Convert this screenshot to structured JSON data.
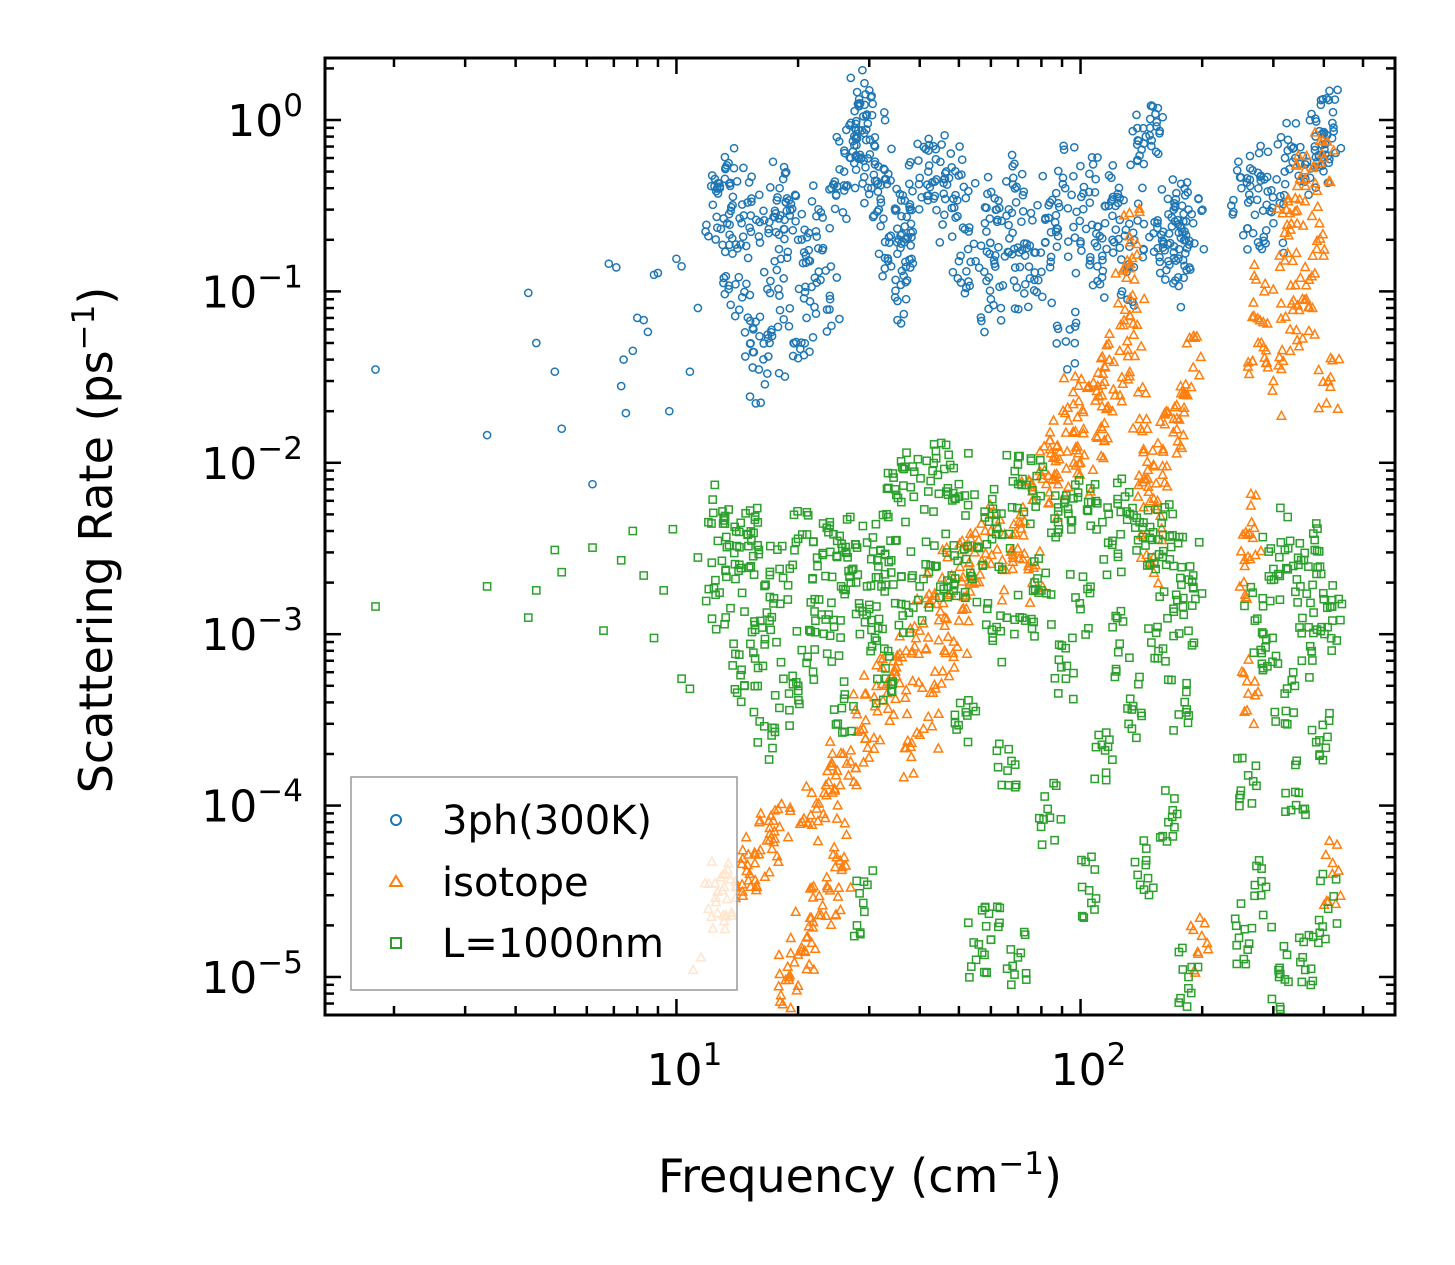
{
  "chart_data": {
    "type": "scatter",
    "xscale": "log",
    "yscale": "log",
    "xlim": [
      1.35,
      600
    ],
    "ylim": [
      6e-06,
      2.3
    ],
    "xlabel": {
      "text": "Frequency (cm",
      "sup": "−1",
      "tail": ")"
    },
    "ylabel": {
      "text": "Scattering Rate (ps",
      "sup": "−1",
      "tail": ")"
    },
    "xticks": [
      {
        "value": 10,
        "base": "10",
        "exp": "1"
      },
      {
        "value": 100,
        "base": "10",
        "exp": "2"
      }
    ],
    "yticks": [
      {
        "value": 1,
        "base": "10",
        "exp": "0"
      },
      {
        "value": 0.1,
        "base": "10",
        "exp": "−1"
      },
      {
        "value": 0.01,
        "base": "10",
        "exp": "−2"
      },
      {
        "value": 0.001,
        "base": "10",
        "exp": "−3"
      },
      {
        "value": 0.0001,
        "base": "10",
        "exp": "−4"
      },
      {
        "value": 1e-05,
        "base": "10",
        "exp": "−5"
      }
    ],
    "legend_position": "lower-left",
    "series": [
      {
        "name": "3ph(300K)",
        "marker": "circle",
        "color": "#1f77b4",
        "points": [
          [
            1.8,
            0.035
          ],
          [
            3.4,
            0.0145
          ],
          [
            4.3,
            0.098
          ],
          [
            4.5,
            0.05
          ],
          [
            5.0,
            0.034
          ],
          [
            5.2,
            0.0158
          ],
          [
            6.2,
            0.0075
          ],
          [
            6.8,
            0.145
          ],
          [
            7.1,
            0.138
          ],
          [
            7.3,
            0.028
          ],
          [
            7.4,
            0.04
          ],
          [
            7.5,
            0.0195
          ],
          [
            7.8,
            0.045
          ],
          [
            8.0,
            0.07
          ],
          [
            8.3,
            0.068
          ],
          [
            8.5,
            0.058
          ],
          [
            8.8,
            0.125
          ],
          [
            9.0,
            0.128
          ],
          [
            9.6,
            0.02
          ],
          [
            10.0,
            0.155
          ],
          [
            10.3,
            0.14
          ],
          [
            10.8,
            0.034
          ],
          [
            11.3,
            0.08
          ],
          [
            12.0,
            0.21
          ],
          [
            12.3,
            0.32
          ],
          [
            12.8,
            0.4
          ],
          [
            13.2,
            0.17
          ],
          [
            13.6,
            0.43
          ],
          [
            14.0,
            0.11
          ],
          [
            14.5,
            0.25
          ],
          [
            15.0,
            0.33
          ],
          [
            15.5,
            0.06
          ],
          [
            16.0,
            0.035
          ],
          [
            16.5,
            0.26
          ],
          [
            17.0,
            0.05
          ],
          [
            17.5,
            0.15
          ],
          [
            18.0,
            0.4
          ],
          [
            18.5,
            0.23
          ],
          [
            19.0,
            0.34
          ],
          [
            19.5,
            0.05
          ],
          [
            20.0,
            0.2
          ],
          [
            21.0,
            0.07
          ],
          [
            22.0,
            0.12
          ],
          [
            23.0,
            0.27
          ],
          [
            24.0,
            0.09
          ],
          [
            25.0,
            0.41
          ],
          [
            26.0,
            0.5
          ],
          [
            27.0,
            0.6
          ],
          [
            28.0,
            0.78
          ],
          [
            28.5,
            1.25
          ],
          [
            29.0,
            1.05
          ],
          [
            29.5,
            0.88
          ],
          [
            30.0,
            0.37
          ],
          [
            31.0,
            0.7
          ],
          [
            32.0,
            0.24
          ],
          [
            33.0,
            0.45
          ],
          [
            34.0,
            0.14
          ],
          [
            35.0,
            0.3
          ],
          [
            36.0,
            0.19
          ],
          [
            37.0,
            0.09
          ],
          [
            38.0,
            0.22
          ],
          [
            40.0,
            0.46
          ],
          [
            42.0,
            0.5
          ],
          [
            44.0,
            0.45
          ],
          [
            46.0,
            0.28
          ],
          [
            48.0,
            0.53
          ],
          [
            50.0,
            0.15
          ],
          [
            52.0,
            0.35
          ],
          [
            55.0,
            0.15
          ],
          [
            58.0,
            0.25
          ],
          [
            60.0,
            0.09
          ],
          [
            62.0,
            0.3
          ],
          [
            65.0,
            0.16
          ],
          [
            68.0,
            0.42
          ],
          [
            70.0,
            0.18
          ],
          [
            73.0,
            0.11
          ],
          [
            76.0,
            0.26
          ],
          [
            80.0,
            0.13
          ],
          [
            84.0,
            0.33
          ],
          [
            88.0,
            0.21
          ],
          [
            92.0,
            0.051
          ],
          [
            96.0,
            0.47
          ],
          [
            100.0,
            0.19
          ],
          [
            105.0,
            0.38
          ],
          [
            110.0,
            0.14
          ],
          [
            115.0,
            0.25
          ],
          [
            120.0,
            0.2
          ],
          [
            125.0,
            0.35
          ],
          [
            130.0,
            0.13
          ],
          [
            135.0,
            0.22
          ],
          [
            140.0,
            0.62
          ],
          [
            145.0,
            0.8
          ],
          [
            150.0,
            0.76
          ],
          [
            155.0,
            0.25
          ],
          [
            160.0,
            0.18
          ],
          [
            165.0,
            0.15
          ],
          [
            170.0,
            0.3
          ],
          [
            175.0,
            0.22
          ],
          [
            180.0,
            0.12
          ],
          [
            185.0,
            0.3
          ],
          [
            190.0,
            0.25
          ],
          [
            250.0,
            0.4
          ],
          [
            260.0,
            0.33
          ],
          [
            270.0,
            0.28
          ],
          [
            285.0,
            0.45
          ],
          [
            300.0,
            0.25
          ],
          [
            320.0,
            0.5
          ],
          [
            340.0,
            0.6
          ],
          [
            360.0,
            0.55
          ],
          [
            380.0,
            0.7
          ],
          [
            400.0,
            0.85
          ],
          [
            420.0,
            0.96
          ],
          [
            410.0,
            0.62
          ]
        ]
      },
      {
        "name": "isotope",
        "marker": "triangle",
        "color": "#ff7f0e",
        "points": [
          [
            11.0,
            1.1e-05
          ],
          [
            11.5,
            1.3e-05
          ],
          [
            12.0,
            2.5e-05
          ],
          [
            12.5,
            2.9e-05
          ],
          [
            13.0,
            3.2e-05
          ],
          [
            14.0,
            3.6e-05
          ],
          [
            15.0,
            4.5e-05
          ],
          [
            16.0,
            5.2e-05
          ],
          [
            17.0,
            6.3e-05
          ],
          [
            18.0,
            7.5e-05
          ],
          [
            19.0,
            1e-05
          ],
          [
            20.0,
            1.35e-05
          ],
          [
            21.0,
            1.7e-05
          ],
          [
            21.5,
            8.8e-05
          ],
          [
            22.5,
            2.3e-05
          ],
          [
            23.5,
            0.000115
          ],
          [
            24.0,
            3.2e-05
          ],
          [
            25.0,
            0.00016
          ],
          [
            26.0,
            5e-05
          ],
          [
            27.0,
            0.00021
          ],
          [
            29.0,
            0.00028
          ],
          [
            31.0,
            0.00038
          ],
          [
            33.0,
            0.0005
          ],
          [
            35.0,
            0.00064
          ],
          [
            37.0,
            0.0008
          ],
          [
            38.0,
            0.00022
          ],
          [
            40.0,
            0.00105
          ],
          [
            42.0,
            0.00033
          ],
          [
            44.0,
            0.0015
          ],
          [
            46.0,
            0.0008
          ],
          [
            48.0,
            0.0022
          ],
          [
            50.0,
            0.0012
          ],
          [
            53.0,
            0.0026
          ],
          [
            56.0,
            0.0032
          ],
          [
            60.0,
            0.004
          ],
          [
            64.0,
            0.0024
          ],
          [
            68.0,
            0.0038
          ],
          [
            72.0,
            0.0055
          ],
          [
            76.0,
            0.002
          ],
          [
            80.0,
            0.0085
          ],
          [
            84.0,
            0.012
          ],
          [
            88.0,
            0.0075
          ],
          [
            92.0,
            0.015
          ],
          [
            96.0,
            0.022
          ],
          [
            100.0,
            0.01
          ],
          [
            105.0,
            0.028
          ],
          [
            110.0,
            0.014
          ],
          [
            115.0,
            0.036
          ],
          [
            120.0,
            0.02
          ],
          [
            125.0,
            0.045
          ],
          [
            130.0,
            0.12
          ],
          [
            132.0,
            0.21
          ],
          [
            135.0,
            0.065
          ],
          [
            140.0,
            0.018
          ],
          [
            145.0,
            0.008
          ],
          [
            150.0,
            0.0026
          ],
          [
            155.0,
            0.006
          ],
          [
            160.0,
            0.012
          ],
          [
            170.0,
            0.018
          ],
          [
            180.0,
            0.025
          ],
          [
            190.0,
            0.036
          ],
          [
            195.0,
            1.4e-05
          ],
          [
            255.0,
            0.0025
          ],
          [
            260.0,
            0.00045
          ],
          [
            265.0,
            0.0045
          ],
          [
            275.0,
            0.05
          ],
          [
            285.0,
            0.1
          ],
          [
            300.0,
            0.03
          ],
          [
            320.0,
            0.22
          ],
          [
            330.0,
            0.06
          ],
          [
            340.0,
            0.35
          ],
          [
            350.0,
            0.12
          ],
          [
            360.0,
            0.45
          ],
          [
            375.0,
            0.08
          ],
          [
            390.0,
            0.25
          ],
          [
            400.0,
            0.6
          ],
          [
            410.0,
            0.03
          ],
          [
            420.0,
            4e-05
          ]
        ]
      },
      {
        "name": "L=1000nm",
        "marker": "square",
        "color": "#2ca02c",
        "points": [
          [
            1.8,
            0.00145
          ],
          [
            3.4,
            0.0019
          ],
          [
            4.3,
            0.00125
          ],
          [
            4.5,
            0.0018
          ],
          [
            5.0,
            0.0031
          ],
          [
            5.2,
            0.0023
          ],
          [
            6.2,
            0.0032
          ],
          [
            6.6,
            0.00105
          ],
          [
            7.3,
            0.0027
          ],
          [
            7.8,
            0.004
          ],
          [
            8.3,
            0.0022
          ],
          [
            8.8,
            0.00095
          ],
          [
            9.3,
            0.0018
          ],
          [
            9.8,
            0.0041
          ],
          [
            10.3,
            0.00055
          ],
          [
            10.8,
            0.00048
          ],
          [
            11.3,
            0.0028
          ],
          [
            12.0,
            0.0045
          ],
          [
            12.5,
            0.0017
          ],
          [
            13.0,
            0.0052
          ],
          [
            13.5,
            0.0033
          ],
          [
            14.0,
            0.0021
          ],
          [
            14.5,
            0.00062
          ],
          [
            15.0,
            0.0038
          ],
          [
            15.5,
            0.00078
          ],
          [
            16.0,
            0.0031
          ],
          [
            16.5,
            0.00029
          ],
          [
            17.0,
            0.0012
          ],
          [
            18.0,
            0.0024
          ],
          [
            19.0,
            0.00045
          ],
          [
            20.0,
            0.0036
          ],
          [
            21.0,
            0.00068
          ],
          [
            22.0,
            0.0016
          ],
          [
            23.0,
            0.0029
          ],
          [
            24.0,
            0.00098
          ],
          [
            25.0,
            0.0035
          ],
          [
            26.0,
            0.00042
          ],
          [
            27.0,
            0.002
          ],
          [
            28.0,
            0.0032
          ],
          [
            29.0,
            2.7e-05
          ],
          [
            30.0,
            0.0014
          ],
          [
            31.0,
            0.00095
          ],
          [
            32.0,
            0.0031
          ],
          [
            33.0,
            0.00055
          ],
          [
            34.0,
            0.0027
          ],
          [
            35.0,
            0.0065
          ],
          [
            36.0,
            0.0015
          ],
          [
            38.0,
            0.0072
          ],
          [
            40.0,
            0.0019
          ],
          [
            42.0,
            0.0068
          ],
          [
            44.0,
            0.0025
          ],
          [
            46.0,
            0.0092
          ],
          [
            48.0,
            0.0022
          ],
          [
            50.0,
            0.0075
          ],
          [
            52.0,
            0.00035
          ],
          [
            54.0,
            0.0021
          ],
          [
            56.0,
            1.55e-05
          ],
          [
            58.0,
            0.0048
          ],
          [
            60.0,
            1.65e-05
          ],
          [
            62.0,
            0.0011
          ],
          [
            64.0,
            0.0038
          ],
          [
            66.0,
            0.00016
          ],
          [
            68.0,
            0.0078
          ],
          [
            70.0,
            1.3e-05
          ],
          [
            73.0,
            0.0012
          ],
          [
            76.0,
            0.0069
          ],
          [
            80.0,
            0.0018
          ],
          [
            84.0,
            8.5e-05
          ],
          [
            88.0,
            0.0045
          ],
          [
            92.0,
            0.00055
          ],
          [
            96.0,
            0.0062
          ],
          [
            100.0,
            0.0014
          ],
          [
            105.0,
            3.2e-05
          ],
          [
            110.0,
            0.0058
          ],
          [
            115.0,
            0.00021
          ],
          [
            120.0,
            0.0035
          ],
          [
            125.0,
            0.00088
          ],
          [
            130.0,
            0.0052
          ],
          [
            135.0,
            0.00038
          ],
          [
            140.0,
            0.0045
          ],
          [
            145.0,
            4.5e-05
          ],
          [
            150.0,
            0.0028
          ],
          [
            155.0,
            0.0011
          ],
          [
            160.0,
            0.0038
          ],
          [
            165.0,
            8e-05
          ],
          [
            170.0,
            0.0025
          ],
          [
            175.0,
            0.00034
          ],
          [
            180.0,
            0.0013
          ],
          [
            185.0,
            1e-05
          ],
          [
            190.0,
            0.0022
          ],
          [
            255.0,
            1.9e-05
          ],
          [
            260.0,
            0.00015
          ],
          [
            270.0,
            0.0012
          ],
          [
            280.0,
            3e-05
          ],
          [
            290.0,
            0.00065
          ],
          [
            300.0,
            0.0024
          ],
          [
            310.0,
            1e-05
          ],
          [
            320.0,
            0.00045
          ],
          [
            330.0,
            0.0035
          ],
          [
            340.0,
            0.00012
          ],
          [
            350.0,
            0.0019
          ],
          [
            360.0,
            1.1e-05
          ],
          [
            370.0,
            0.00085
          ],
          [
            380.0,
            0.0031
          ],
          [
            390.0,
            0.00024
          ],
          [
            400.0,
            0.0016
          ],
          [
            410.0,
            2.5e-05
          ],
          [
            420.0,
            0.0012
          ]
        ]
      }
    ]
  }
}
